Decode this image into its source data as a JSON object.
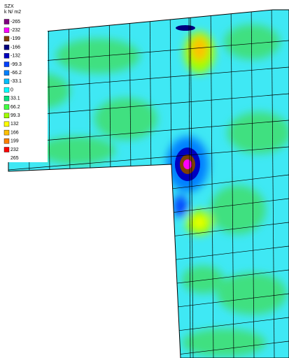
{
  "legend": {
    "title": "SZX",
    "unit": "k N/ m2",
    "levels": [
      {
        "label": "-265",
        "color": "#800080"
      },
      {
        "label": "-232",
        "color": "#ff00ff"
      },
      {
        "label": "-199",
        "color": "#804000"
      },
      {
        "label": "-166",
        "color": "#000080"
      },
      {
        "label": "-132",
        "color": "#0000c0"
      },
      {
        "label": "-99.3",
        "color": "#0040ff"
      },
      {
        "label": "-66.2",
        "color": "#0080ff"
      },
      {
        "label": "-33.1",
        "color": "#00c0ff"
      },
      {
        "label": "0",
        "color": "#00ffff"
      },
      {
        "label": "33.1",
        "color": "#00e080"
      },
      {
        "label": "66.2",
        "color": "#40ff40"
      },
      {
        "label": "99.3",
        "color": "#a0ff00"
      },
      {
        "label": "132",
        "color": "#ffff00"
      },
      {
        "label": "166",
        "color": "#ffc000"
      },
      {
        "label": "199",
        "color": "#ff8000"
      },
      {
        "label": "232",
        "color": "#ff0000"
      },
      {
        "label": "265"
      }
    ]
  }
}
